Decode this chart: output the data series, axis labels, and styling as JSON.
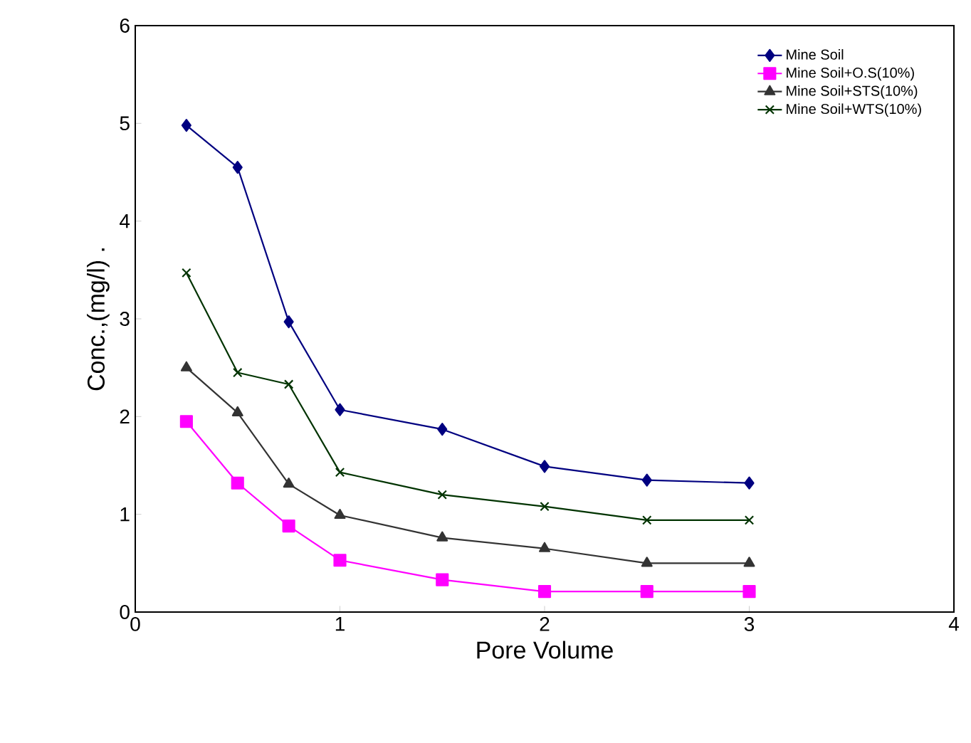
{
  "chart_data": {
    "type": "line",
    "xlabel": "Pore Volume",
    "ylabel": "Conc.,(mg/l) .",
    "xlim": [
      0,
      4
    ],
    "ylim": [
      0,
      6
    ],
    "xticks": [
      0,
      1,
      2,
      3,
      4
    ],
    "yticks": [
      0,
      1,
      2,
      3,
      4,
      5,
      6
    ],
    "grid": false,
    "legend": "top right",
    "line_style": "solid",
    "series": [
      {
        "name": "Mine Soil",
        "color": "#000080",
        "marker": "diamond",
        "x": [
          0.25,
          0.5,
          0.75,
          1,
          1.5,
          2,
          2.5,
          3
        ],
        "values": [
          4.98,
          4.55,
          2.97,
          2.07,
          1.87,
          1.49,
          1.35,
          1.32
        ]
      },
      {
        "name": "Mine Soil+O.S(10%)",
        "color": "#ff00ff",
        "marker": "square",
        "x": [
          0.25,
          0.5,
          0.75,
          1,
          1.5,
          2,
          2.5,
          3
        ],
        "values": [
          1.95,
          1.32,
          0.88,
          0.53,
          0.33,
          0.21,
          0.21,
          0.21
        ]
      },
      {
        "name": "Mine Soil+STS(10%)",
        "color": "#333333",
        "marker": "triangle",
        "x": [
          0.25,
          0.5,
          0.75,
          1,
          1.5,
          2,
          2.5,
          3
        ],
        "values": [
          2.5,
          2.04,
          1.31,
          0.99,
          0.76,
          0.65,
          0.5,
          0.5
        ]
      },
      {
        "name": "Mine Soil+WTS(10%)",
        "color": "#003300",
        "marker": "cross",
        "x": [
          0.25,
          0.5,
          0.75,
          1,
          1.5,
          2,
          2.5,
          3
        ],
        "values": [
          3.47,
          2.45,
          2.33,
          1.43,
          1.2,
          1.08,
          0.94,
          0.94
        ]
      }
    ]
  }
}
